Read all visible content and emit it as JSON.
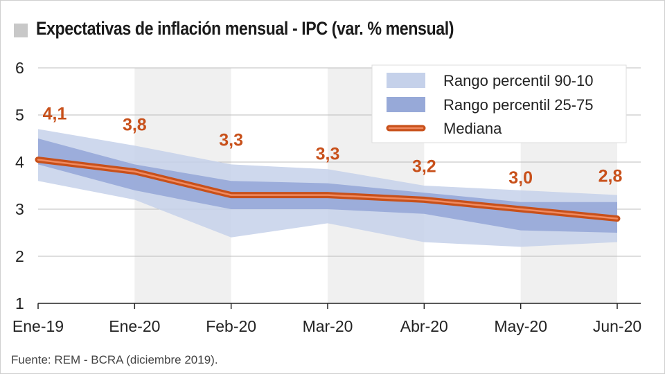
{
  "chart_data": {
    "type": "line",
    "title": "Expectativas de inflación mensual - IPC (var. % mensual)",
    "source": "Fuente: REM - BCRA (diciembre 2019).",
    "categories": [
      "Ene-19",
      "Ene-20",
      "Feb-20",
      "Mar-20",
      "Abr-20",
      "May-20",
      "Jun-20"
    ],
    "ylim": [
      1,
      6
    ],
    "yticks": [
      1,
      2,
      3,
      4,
      5,
      6
    ],
    "series": [
      {
        "name": "Mediana",
        "values": [
          4.05,
          3.8,
          3.3,
          3.3,
          3.2,
          3.0,
          2.8
        ],
        "color": "#c8501a"
      },
      {
        "name": "Rango percentil 90-10",
        "low": [
          3.6,
          3.2,
          2.4,
          2.7,
          2.3,
          2.2,
          2.3
        ],
        "high": [
          4.7,
          4.35,
          3.95,
          3.85,
          3.5,
          3.4,
          3.3
        ],
        "color": "#c5d1ea"
      },
      {
        "name": "Rango percentil 25-75",
        "low": [
          3.95,
          3.4,
          3.0,
          3.0,
          2.9,
          2.55,
          2.5
        ],
        "high": [
          4.5,
          3.95,
          3.6,
          3.55,
          3.35,
          3.15,
          3.15
        ],
        "color": "#97a9d8"
      }
    ],
    "data_labels": [
      "4,1",
      "3,8",
      "3,3",
      "3,3",
      "3,2",
      "3,0",
      "2,8"
    ],
    "legend": {
      "position": "top-right",
      "items": [
        "Rango percentil 90-10",
        "Rango percentil 25-75",
        "Mediana"
      ]
    }
  }
}
